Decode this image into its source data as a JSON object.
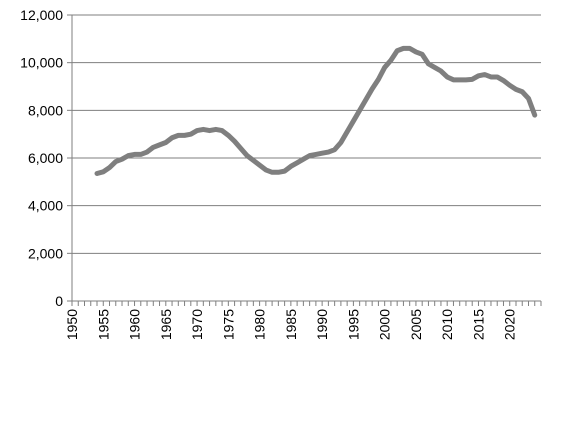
{
  "chart_data": {
    "type": "line",
    "title": "",
    "xlabel": "",
    "ylabel": "",
    "xlim": [
      1950,
      2025
    ],
    "ylim": [
      0,
      12000
    ],
    "x_ticks": [
      1950,
      1955,
      1960,
      1965,
      1970,
      1975,
      1980,
      1985,
      1990,
      1995,
      2000,
      2005,
      2010,
      2015,
      2020
    ],
    "x_tick_labels": [
      "1950",
      "1955",
      "1960",
      "1965",
      "1970",
      "1975",
      "1980",
      "1985",
      "1990",
      "1995",
      "2000",
      "2005",
      "2010",
      "2015",
      "2020"
    ],
    "y_ticks": [
      0,
      2000,
      4000,
      6000,
      8000,
      10000,
      12000
    ],
    "y_tick_labels": [
      "0",
      "2,000",
      "4,000",
      "6,000",
      "8,000",
      "10,000",
      "12,000"
    ],
    "grid": "horizontal",
    "legend": "none",
    "series": [
      {
        "name": "",
        "color": "#7f7f7f",
        "x": [
          1954,
          1955,
          1956,
          1957,
          1958,
          1959,
          1960,
          1961,
          1962,
          1963,
          1964,
          1965,
          1966,
          1967,
          1968,
          1969,
          1970,
          1971,
          1972,
          1973,
          1974,
          1975,
          1976,
          1977,
          1978,
          1979,
          1980,
          1981,
          1982,
          1983,
          1984,
          1985,
          1986,
          1987,
          1988,
          1989,
          1990,
          1991,
          1992,
          1993,
          1994,
          1995,
          1996,
          1997,
          1998,
          1999,
          2000,
          2001,
          2002,
          2003,
          2004,
          2005,
          2006,
          2007,
          2008,
          2009,
          2010,
          2011,
          2012,
          2013,
          2014,
          2015,
          2016,
          2017,
          2018,
          2019,
          2020,
          2021,
          2022,
          2023,
          2024
        ],
        "values": [
          5350,
          5420,
          5600,
          5850,
          5950,
          6100,
          6150,
          6150,
          6250,
          6450,
          6550,
          6650,
          6850,
          6950,
          6950,
          7000,
          7150,
          7200,
          7150,
          7200,
          7150,
          6950,
          6700,
          6400,
          6100,
          5900,
          5700,
          5500,
          5400,
          5400,
          5450,
          5650,
          5800,
          5950,
          6100,
          6150,
          6200,
          6250,
          6350,
          6650,
          7100,
          7550,
          8000,
          8450,
          8900,
          9300,
          9800,
          10100,
          10500,
          10600,
          10600,
          10450,
          10350,
          9950,
          9800,
          9650,
          9400,
          9280,
          9280,
          9280,
          9300,
          9450,
          9500,
          9400,
          9400,
          9250,
          9050,
          8880,
          8780,
          8500,
          7800
        ]
      }
    ]
  }
}
